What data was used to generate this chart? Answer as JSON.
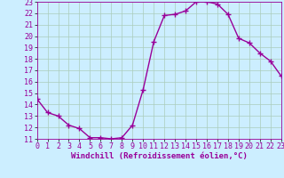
{
  "x": [
    0,
    1,
    2,
    3,
    4,
    5,
    6,
    7,
    8,
    9,
    10,
    11,
    12,
    13,
    14,
    15,
    16,
    17,
    18,
    19,
    20,
    21,
    22,
    23
  ],
  "y": [
    14.5,
    13.3,
    13.0,
    12.2,
    11.9,
    11.1,
    11.1,
    11.0,
    11.1,
    12.2,
    15.3,
    19.5,
    21.8,
    21.9,
    22.2,
    23.0,
    23.0,
    22.8,
    21.9,
    19.8,
    19.4,
    18.5,
    17.8,
    16.5
  ],
  "line_color": "#990099",
  "marker": "+",
  "marker_size": 4,
  "marker_linewidth": 1.0,
  "line_width": 1.0,
  "bg_color": "#cceeff",
  "grid_color": "#aaccbb",
  "xlabel": "Windchill (Refroidissement éolien,°C)",
  "xlim": [
    0,
    23
  ],
  "ylim": [
    11,
    23
  ],
  "yticks": [
    11,
    12,
    13,
    14,
    15,
    16,
    17,
    18,
    19,
    20,
    21,
    22,
    23
  ],
  "xticks": [
    0,
    1,
    2,
    3,
    4,
    5,
    6,
    7,
    8,
    9,
    10,
    11,
    12,
    13,
    14,
    15,
    16,
    17,
    18,
    19,
    20,
    21,
    22,
    23
  ],
  "xlabel_fontsize": 6.5,
  "tick_fontsize": 6.0,
  "figsize": [
    3.2,
    2.0
  ],
  "dpi": 100
}
